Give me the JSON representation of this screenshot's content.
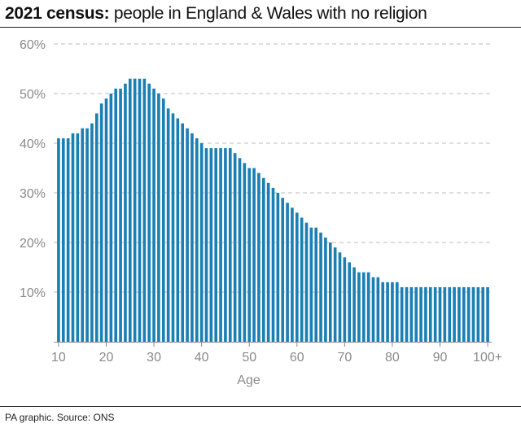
{
  "header": {
    "title_bold": "2021 census:",
    "title_rest": " people in England & Wales with no religion"
  },
  "footer": {
    "source": "PA graphic. Source: ONS"
  },
  "colors": {
    "bar": "#1b7fb3",
    "grid": "#bdbdbd",
    "tick": "#8a8a8a",
    "rule": "#222222"
  },
  "chart_data": {
    "type": "bar",
    "title": "2021 census: people in England & Wales with no religion",
    "xlabel": "Age",
    "ylabel": "",
    "ylim": [
      0,
      60
    ],
    "yticks": [
      "60%",
      "50%",
      "40%",
      "30%",
      "20%",
      "10%"
    ],
    "ytick_values": [
      60,
      50,
      40,
      30,
      20,
      10
    ],
    "xticks": [
      "10",
      "20",
      "30",
      "40",
      "50",
      "60",
      "70",
      "80",
      "90",
      "100+"
    ],
    "xtick_values": [
      10,
      20,
      30,
      40,
      50,
      60,
      70,
      80,
      90,
      100
    ],
    "grid": "horizontal dashed",
    "categories": [
      10,
      11,
      12,
      13,
      14,
      15,
      16,
      17,
      18,
      19,
      20,
      21,
      22,
      23,
      24,
      25,
      26,
      27,
      28,
      29,
      30,
      31,
      32,
      33,
      34,
      35,
      36,
      37,
      38,
      39,
      40,
      41,
      42,
      43,
      44,
      45,
      46,
      47,
      48,
      49,
      50,
      51,
      52,
      53,
      54,
      55,
      56,
      57,
      58,
      59,
      60,
      61,
      62,
      63,
      64,
      65,
      66,
      67,
      68,
      69,
      70,
      71,
      72,
      73,
      74,
      75,
      76,
      77,
      78,
      79,
      80,
      81,
      82,
      83,
      84,
      85,
      86,
      87,
      88,
      89,
      90,
      91,
      92,
      93,
      94,
      95,
      96,
      97,
      98,
      99,
      100
    ],
    "values": [
      41,
      41,
      41,
      42,
      42,
      43,
      43,
      44,
      46,
      48,
      49,
      50,
      51,
      51,
      52,
      53,
      53,
      53,
      53,
      52,
      51,
      50,
      49,
      47,
      46,
      45,
      44,
      43,
      42,
      41,
      40,
      39,
      39,
      39,
      39,
      39,
      39,
      38,
      37,
      36,
      35,
      35,
      34,
      33,
      32,
      31,
      30,
      29,
      28,
      27,
      26,
      25,
      24,
      23,
      23,
      22,
      21,
      20,
      19,
      18,
      17,
      16,
      15,
      14,
      14,
      14,
      13,
      13,
      12,
      12,
      12,
      12,
      11,
      11,
      11,
      11,
      11,
      11,
      11,
      11,
      11,
      11,
      11,
      11,
      11,
      11,
      11,
      11,
      11,
      11,
      11
    ]
  }
}
